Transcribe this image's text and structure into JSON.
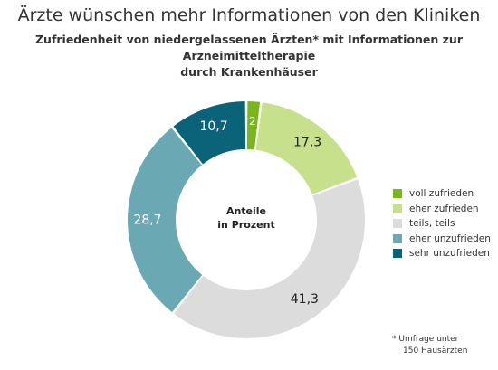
{
  "title": "Ärzte wünschen mehr Informationen von den Kliniken",
  "subtitle_lines": [
    "Zufriedenheit von niedergelassenen Ärzten* mit Informationen zur Arzneimitteltherapie",
    "durch Krankenhäuser"
  ],
  "footnote_lines": [
    "* Umfrage unter",
    "150 Hausärzten"
  ],
  "chart_data": {
    "type": "pie",
    "variant": "donut",
    "center_label_lines": [
      "Anteile",
      "in Prozent"
    ],
    "categories": [
      "voll zufrieden",
      "eher zufrieden",
      "teils, teils",
      "eher unzufrieden",
      "sehr unzufrieden"
    ],
    "values": [
      2,
      17.3,
      41.3,
      28.7,
      10.7
    ],
    "value_labels": [
      "2",
      "17,3",
      "41,3",
      "28,7",
      "10,7"
    ],
    "colors": [
      "#7bb51c",
      "#c6e08b",
      "#dcdcdc",
      "#6aa8b4",
      "#0a6378"
    ],
    "label_colors": [
      "#ffffff",
      "#222222",
      "#222222",
      "#ffffff",
      "#ffffff"
    ],
    "start": "12 o'clock",
    "direction": "clockwise",
    "legend_position": "right"
  }
}
